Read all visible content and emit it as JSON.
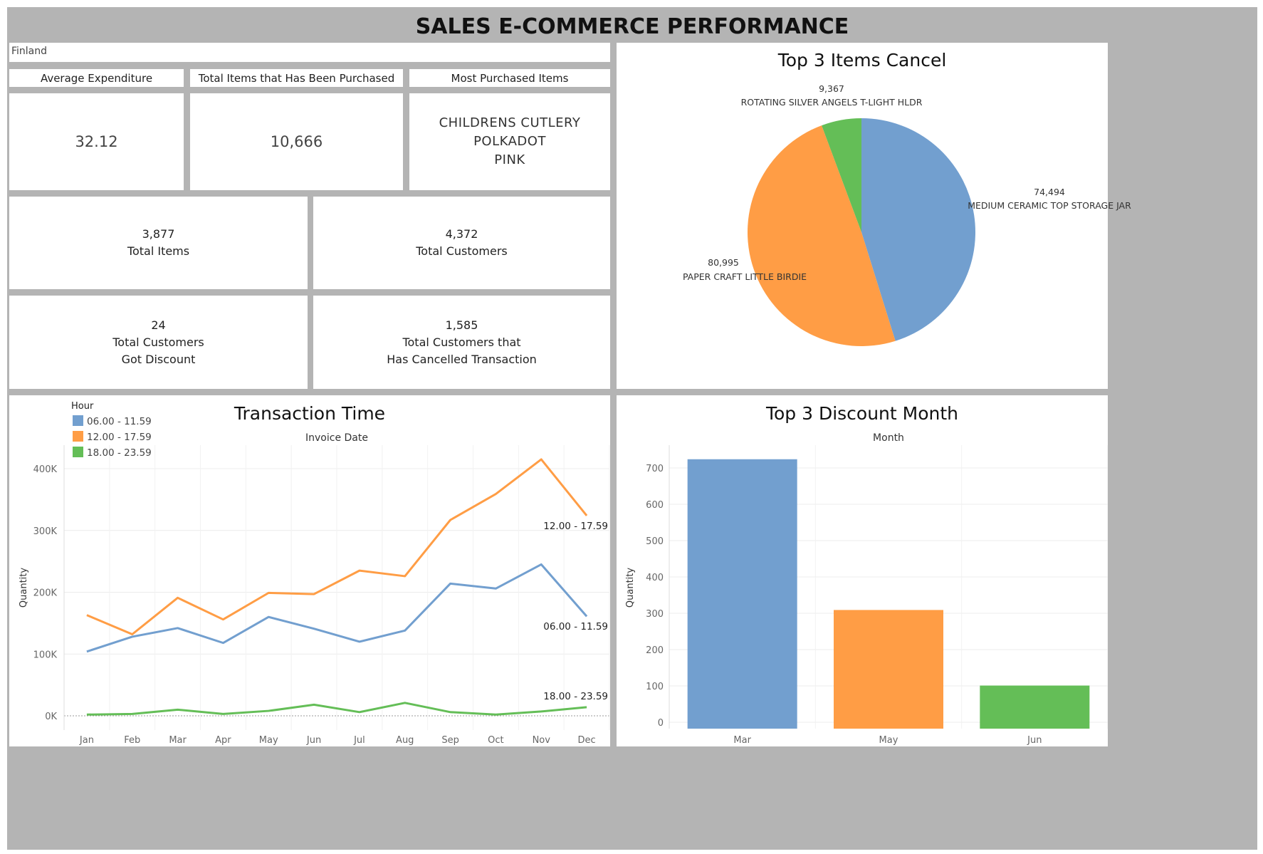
{
  "dashboard": {
    "title": "SALES E-COMMERCE PERFORMANCE",
    "filter_value": "Finland"
  },
  "kpis": {
    "avg_expenditure": {
      "label": "Average Expenditure",
      "value": "32.12"
    },
    "total_purchased": {
      "label": "Total Items that Has Been Purchased",
      "value": "10,666"
    },
    "most_purchased": {
      "label": "Most Purchased Items",
      "value_line1": "CHILDRENS CUTLERY POLKADOT",
      "value_line2": "PINK"
    },
    "total_items": {
      "value": "3,877",
      "label": "Total Items"
    },
    "total_customers": {
      "value": "4,372",
      "label": "Total Customers"
    },
    "discount_customers": {
      "value": "24",
      "label_line1": "Total Customers",
      "label_line2": "Got Discount"
    },
    "cancelled_customers": {
      "value": "1,585",
      "label_line1": "Total Customers that",
      "label_line2": "Has Cancelled Transaction"
    }
  },
  "colors": {
    "blue": "#729fcf",
    "orange": "#ff9d45",
    "green": "#64be57"
  },
  "chart_data": [
    {
      "type": "pie",
      "title": "Top 3 Items Cancel",
      "slices": [
        {
          "label": "MEDIUM CERAMIC TOP STORAGE JAR",
          "value": 74494,
          "value_label": "74,494",
          "color": "#729fcf"
        },
        {
          "label": "PAPER CRAFT  LITTLE BIRDIE",
          "value": 80995,
          "value_label": "80,995",
          "color": "#ff9d45"
        },
        {
          "label": "ROTATING SILVER ANGELS T-LIGHT HLDR",
          "value": 9367,
          "value_label": "9,367",
          "color": "#64be57"
        }
      ]
    },
    {
      "type": "line",
      "title": "Transaction Time",
      "subtitle": "Invoice Date",
      "legend_title": "Hour",
      "legend_position": "top-left",
      "xlabel": "",
      "ylabel": "Quantity",
      "categories": [
        "Jan",
        "Feb",
        "Mar",
        "Apr",
        "May",
        "Jun",
        "Jul",
        "Aug",
        "Sep",
        "Oct",
        "Nov",
        "Dec"
      ],
      "ylim": [
        0,
        400000
      ],
      "yticks": [
        0,
        100000,
        200000,
        300000,
        400000
      ],
      "ytick_labels": [
        "0K",
        "100K",
        "200K",
        "300K",
        "400K"
      ],
      "series": [
        {
          "name": "06.00 - 11.59",
          "color": "#729fcf",
          "values": [
            104000,
            128000,
            142000,
            118000,
            160000,
            141000,
            120000,
            138000,
            214000,
            206000,
            245000,
            161000
          ]
        },
        {
          "name": "12.00 - 17.59",
          "color": "#ff9d45",
          "values": [
            163000,
            132000,
            191000,
            156000,
            199000,
            197000,
            235000,
            226000,
            317000,
            359000,
            415000,
            324000
          ]
        },
        {
          "name": "18.00 - 23.59",
          "color": "#64be57",
          "values": [
            2000,
            3000,
            10000,
            3000,
            8000,
            18000,
            6000,
            21000,
            6000,
            2000,
            7000,
            14000
          ]
        }
      ]
    },
    {
      "type": "bar",
      "title": "Top 3 Discount Month",
      "subtitle": "Month",
      "xlabel": "",
      "ylabel": "Quantity",
      "categories": [
        "Mar",
        "May",
        "Jun"
      ],
      "values": [
        724,
        309,
        101
      ],
      "colors": [
        "#729fcf",
        "#ff9d45",
        "#64be57"
      ],
      "ylim": [
        0,
        730
      ],
      "yticks": [
        0,
        100,
        200,
        300,
        400,
        500,
        600,
        700
      ]
    }
  ]
}
